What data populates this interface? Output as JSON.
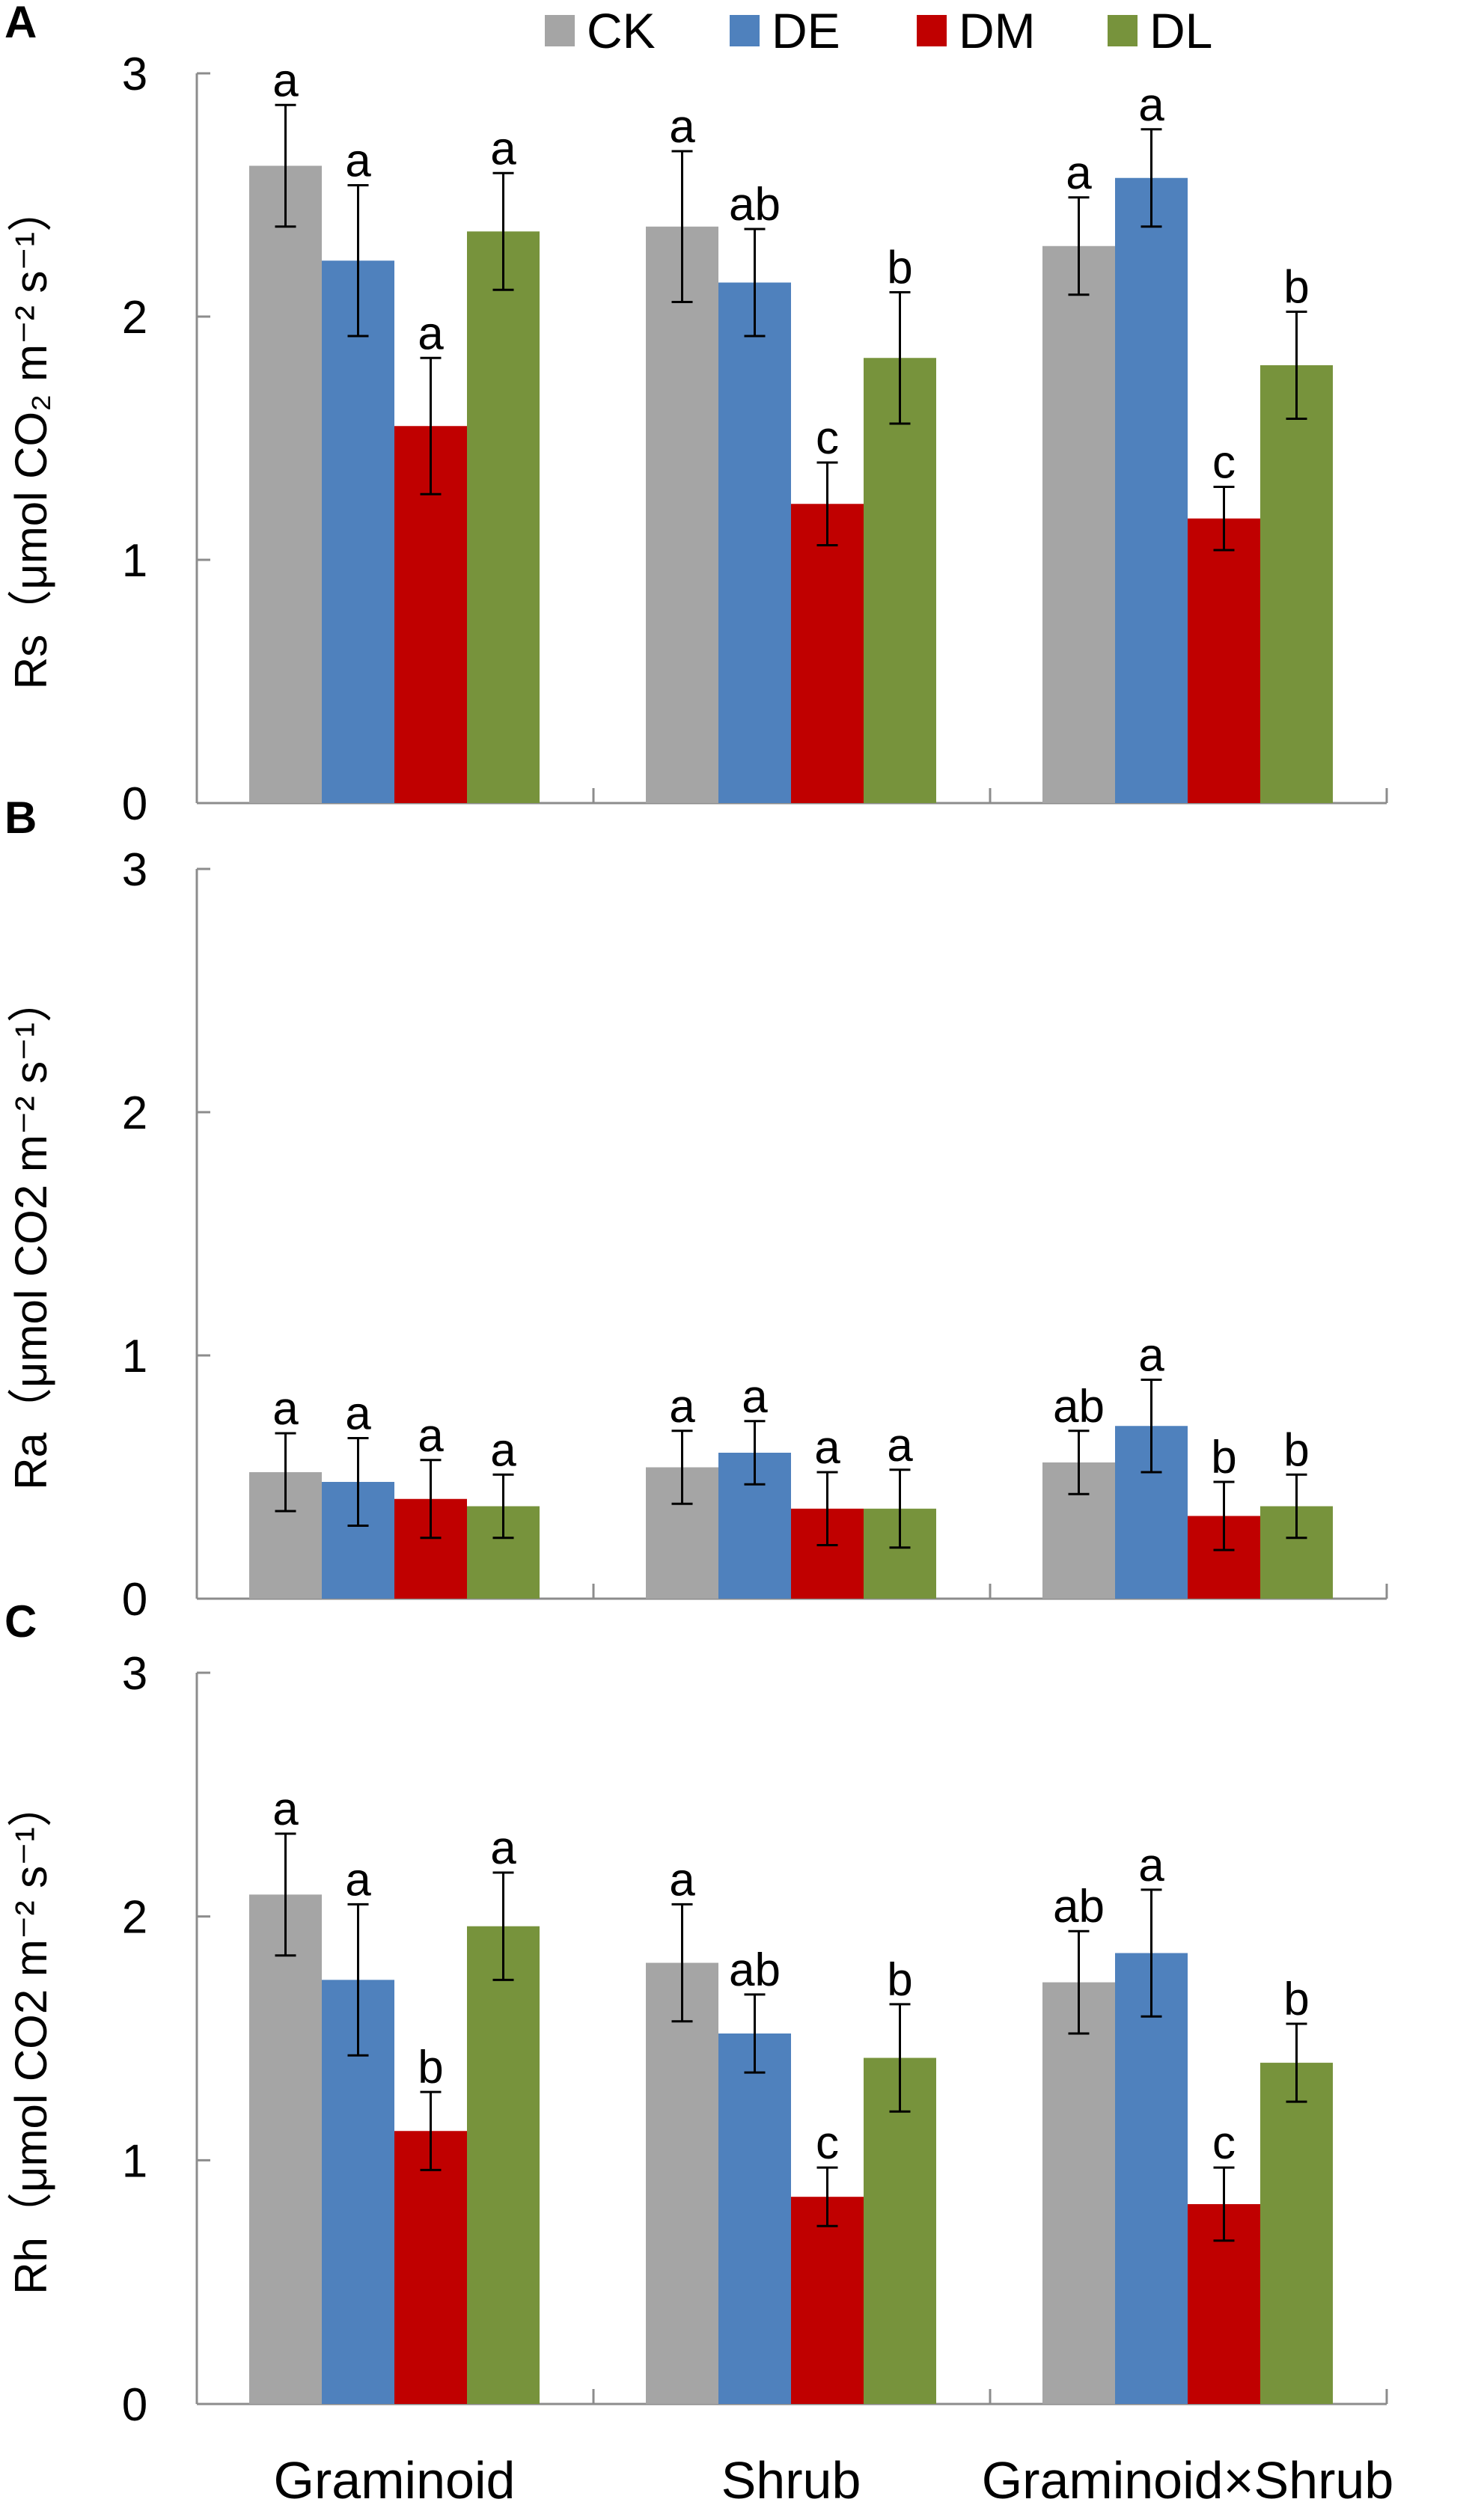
{
  "chart_data": [
    {
      "type": "bar",
      "panel_label": "A",
      "ylabel": "Rs（μmol CO₂ m⁻² s⁻¹）",
      "ylim": [
        0,
        3
      ],
      "yticks": [
        "0",
        "1",
        "2",
        "3"
      ],
      "categories": [
        "Graminoid",
        "Shrub",
        "Graminoid×Shrub"
      ],
      "series": [
        {
          "name": "CK",
          "color": "#a5a5a5",
          "values": [
            2.62,
            2.37,
            2.29
          ],
          "errors": [
            0.25,
            0.31,
            0.2
          ],
          "letters": [
            "a",
            "a",
            "a"
          ]
        },
        {
          "name": "DE",
          "color": "#4f81bd",
          "values": [
            2.23,
            2.14,
            2.57
          ],
          "errors": [
            0.31,
            0.22,
            0.2
          ],
          "letters": [
            "a",
            "ab",
            "a"
          ]
        },
        {
          "name": "DM",
          "color": "#c00000",
          "values": [
            1.55,
            1.23,
            1.17
          ],
          "errors": [
            0.28,
            0.17,
            0.13
          ],
          "letters": [
            "a",
            "c",
            "c"
          ]
        },
        {
          "name": "DL",
          "color": "#77933c",
          "values": [
            2.35,
            1.83,
            1.8
          ],
          "errors": [
            0.24,
            0.27,
            0.22
          ],
          "letters": [
            "a",
            "b",
            "b"
          ]
        }
      ]
    },
    {
      "type": "bar",
      "panel_label": "B",
      "ylabel": "Ra（μmol CO2 m⁻² s⁻¹）",
      "ylim": [
        0,
        3
      ],
      "yticks": [
        "0",
        "1",
        "2",
        "3"
      ],
      "categories": [
        "Graminoid",
        "Shrub",
        "Graminoid×Shrub"
      ],
      "series": [
        {
          "name": "CK",
          "color": "#a5a5a5",
          "values": [
            0.52,
            0.54,
            0.56
          ],
          "errors": [
            0.16,
            0.15,
            0.13
          ],
          "letters": [
            "a",
            "a",
            "ab"
          ]
        },
        {
          "name": "DE",
          "color": "#4f81bd",
          "values": [
            0.48,
            0.6,
            0.71
          ],
          "errors": [
            0.18,
            0.13,
            0.19
          ],
          "letters": [
            "a",
            "a",
            "a"
          ]
        },
        {
          "name": "DM",
          "color": "#c00000",
          "values": [
            0.41,
            0.37,
            0.34
          ],
          "errors": [
            0.16,
            0.15,
            0.14
          ],
          "letters": [
            "a",
            "a",
            "b"
          ]
        },
        {
          "name": "DL",
          "color": "#77933c",
          "values": [
            0.38,
            0.37,
            0.38
          ],
          "errors": [
            0.13,
            0.16,
            0.13
          ],
          "letters": [
            "a",
            "a",
            "b"
          ]
        }
      ]
    },
    {
      "type": "bar",
      "panel_label": "C",
      "ylabel": "Rh（μmol CO2 m⁻² s⁻¹）",
      "ylim": [
        0,
        3
      ],
      "yticks": [
        "0",
        "1",
        "2",
        "3"
      ],
      "categories": [
        "Graminoid",
        "Shrub",
        "Graminoid×Shrub"
      ],
      "series": [
        {
          "name": "CK",
          "color": "#a5a5a5",
          "values": [
            2.09,
            1.81,
            1.73
          ],
          "errors": [
            0.25,
            0.24,
            0.21
          ],
          "letters": [
            "a",
            "a",
            "ab"
          ]
        },
        {
          "name": "DE",
          "color": "#4f81bd",
          "values": [
            1.74,
            1.52,
            1.85
          ],
          "errors": [
            0.31,
            0.16,
            0.26
          ],
          "letters": [
            "a",
            "ab",
            "a"
          ]
        },
        {
          "name": "DM",
          "color": "#c00000",
          "values": [
            1.12,
            0.85,
            0.82
          ],
          "errors": [
            0.16,
            0.12,
            0.15
          ],
          "letters": [
            "b",
            "c",
            "c"
          ]
        },
        {
          "name": "DL",
          "color": "#77933c",
          "values": [
            1.96,
            1.42,
            1.4
          ],
          "errors": [
            0.22,
            0.22,
            0.16
          ],
          "letters": [
            "a",
            "b",
            "b"
          ]
        }
      ]
    }
  ],
  "legend": {
    "position": "top-center",
    "items": [
      "CK",
      "DE",
      "DM",
      "DL"
    ]
  }
}
